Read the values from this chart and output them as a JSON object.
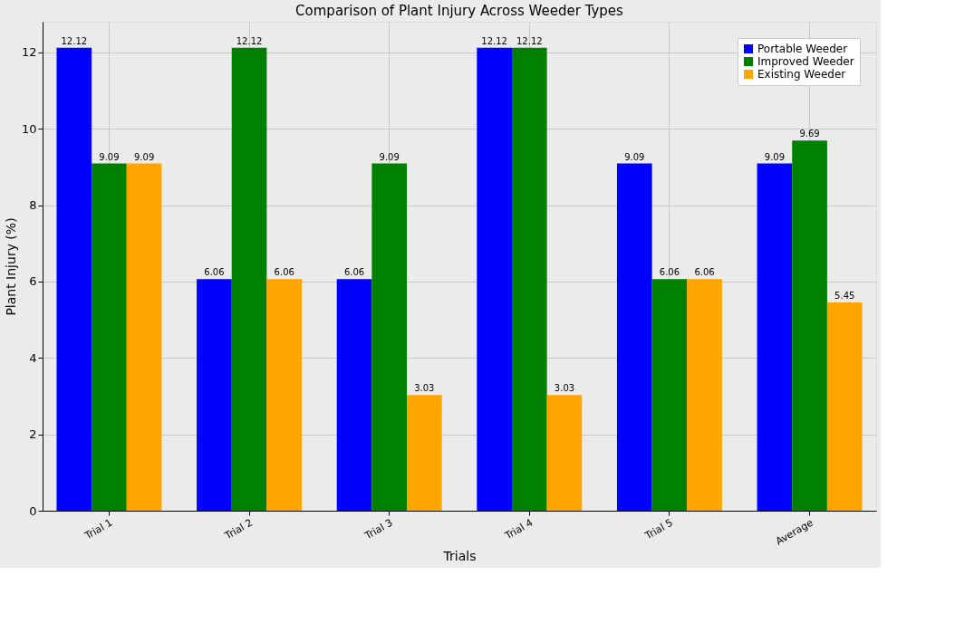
{
  "chart_data": {
    "type": "bar",
    "title": "Comparison of Plant Injury Across Weeder Types",
    "xlabel": "Trials",
    "ylabel": "Plant Injury (%)",
    "categories": [
      "Trial 1",
      "Trial 2",
      "Trial 3",
      "Trial 4",
      "Trial 5",
      "Average"
    ],
    "series": [
      {
        "name": "Portable Weeder",
        "color": "#0000ff",
        "values": [
          12.12,
          6.06,
          6.06,
          12.12,
          9.09,
          9.09
        ]
      },
      {
        "name": "Improved Weeder",
        "color": "#008000",
        "values": [
          9.09,
          12.12,
          9.09,
          12.12,
          6.06,
          9.69
        ]
      },
      {
        "name": "Existing Weeder",
        "color": "#ffa500",
        "values": [
          9.09,
          6.06,
          3.03,
          3.03,
          6.06,
          5.45
        ]
      }
    ],
    "ylim": [
      0,
      12.8
    ],
    "yticks": [
      0,
      2,
      4,
      6,
      8,
      10,
      12
    ],
    "grid": true,
    "legend": "top right",
    "data_labels": true
  }
}
